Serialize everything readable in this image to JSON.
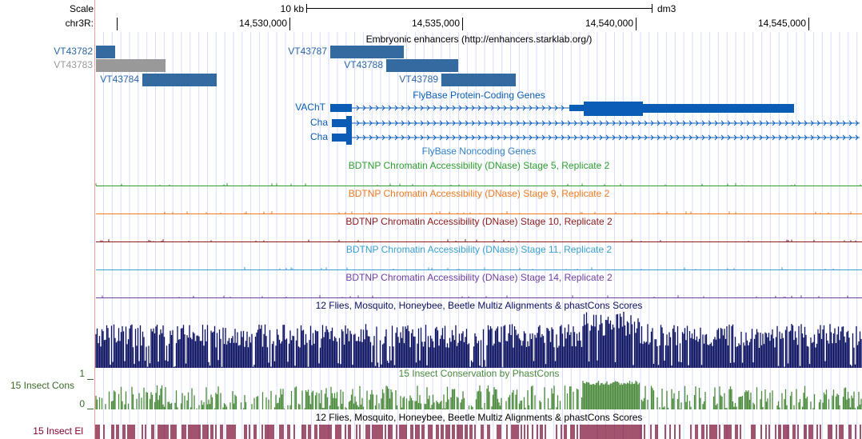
{
  "ruler": {
    "scale_label": "Scale",
    "scale_text": "10 kb",
    "assembly": "dm3",
    "chrom": "chr3R:",
    "ticks": [
      "14,530,000",
      "14,535,000",
      "14,540,000",
      "14,545,000"
    ]
  },
  "enhancers": {
    "title": "Embryonic enhancers (http://enhancers.starklab.org/)",
    "items": [
      "VT43782",
      "VT43783",
      "VT43784",
      "VT43787",
      "VT43788",
      "VT43789"
    ]
  },
  "genes": {
    "title": "FlyBase Protein-Coding Genes",
    "items": [
      "VAChT",
      "Cha",
      "Cha"
    ]
  },
  "noncoding": {
    "title": "FlyBase Noncoding Genes"
  },
  "dnase": [
    {
      "title": "BDTNP Chromatin Accessibility (DNase) Stage 5, Replicate 2",
      "color": "#2e9e2e"
    },
    {
      "title": "BDTNP Chromatin Accessibility (DNase) Stage 9, Replicate 2",
      "color": "#f07a20"
    },
    {
      "title": "BDTNP Chromatin Accessibility (DNase) Stage 10, Replicate 2",
      "color": "#8b1a1a"
    },
    {
      "title": "BDTNP Chromatin Accessibility (DNase) Stage 11, Replicate 2",
      "color": "#3aa0d0"
    },
    {
      "title": "BDTNP Chromatin Accessibility (DNase) Stage 14, Replicate 2",
      "color": "#7040a0"
    }
  ],
  "multiz": {
    "title": "12 Flies, Mosquito, Honeybee, Beetle Multiz Alignments & phastCons Scores"
  },
  "cons": {
    "label": "15 Insect Cons",
    "title": "15 Insect Conservation by PhastCons",
    "ymax": 1,
    "ymin": 0
  },
  "elements": {
    "label": "15 Insect El",
    "title": "12 Flies, Mosquito, Honeybee, Beetle Multiz Alignments & phastCons Scores"
  }
}
